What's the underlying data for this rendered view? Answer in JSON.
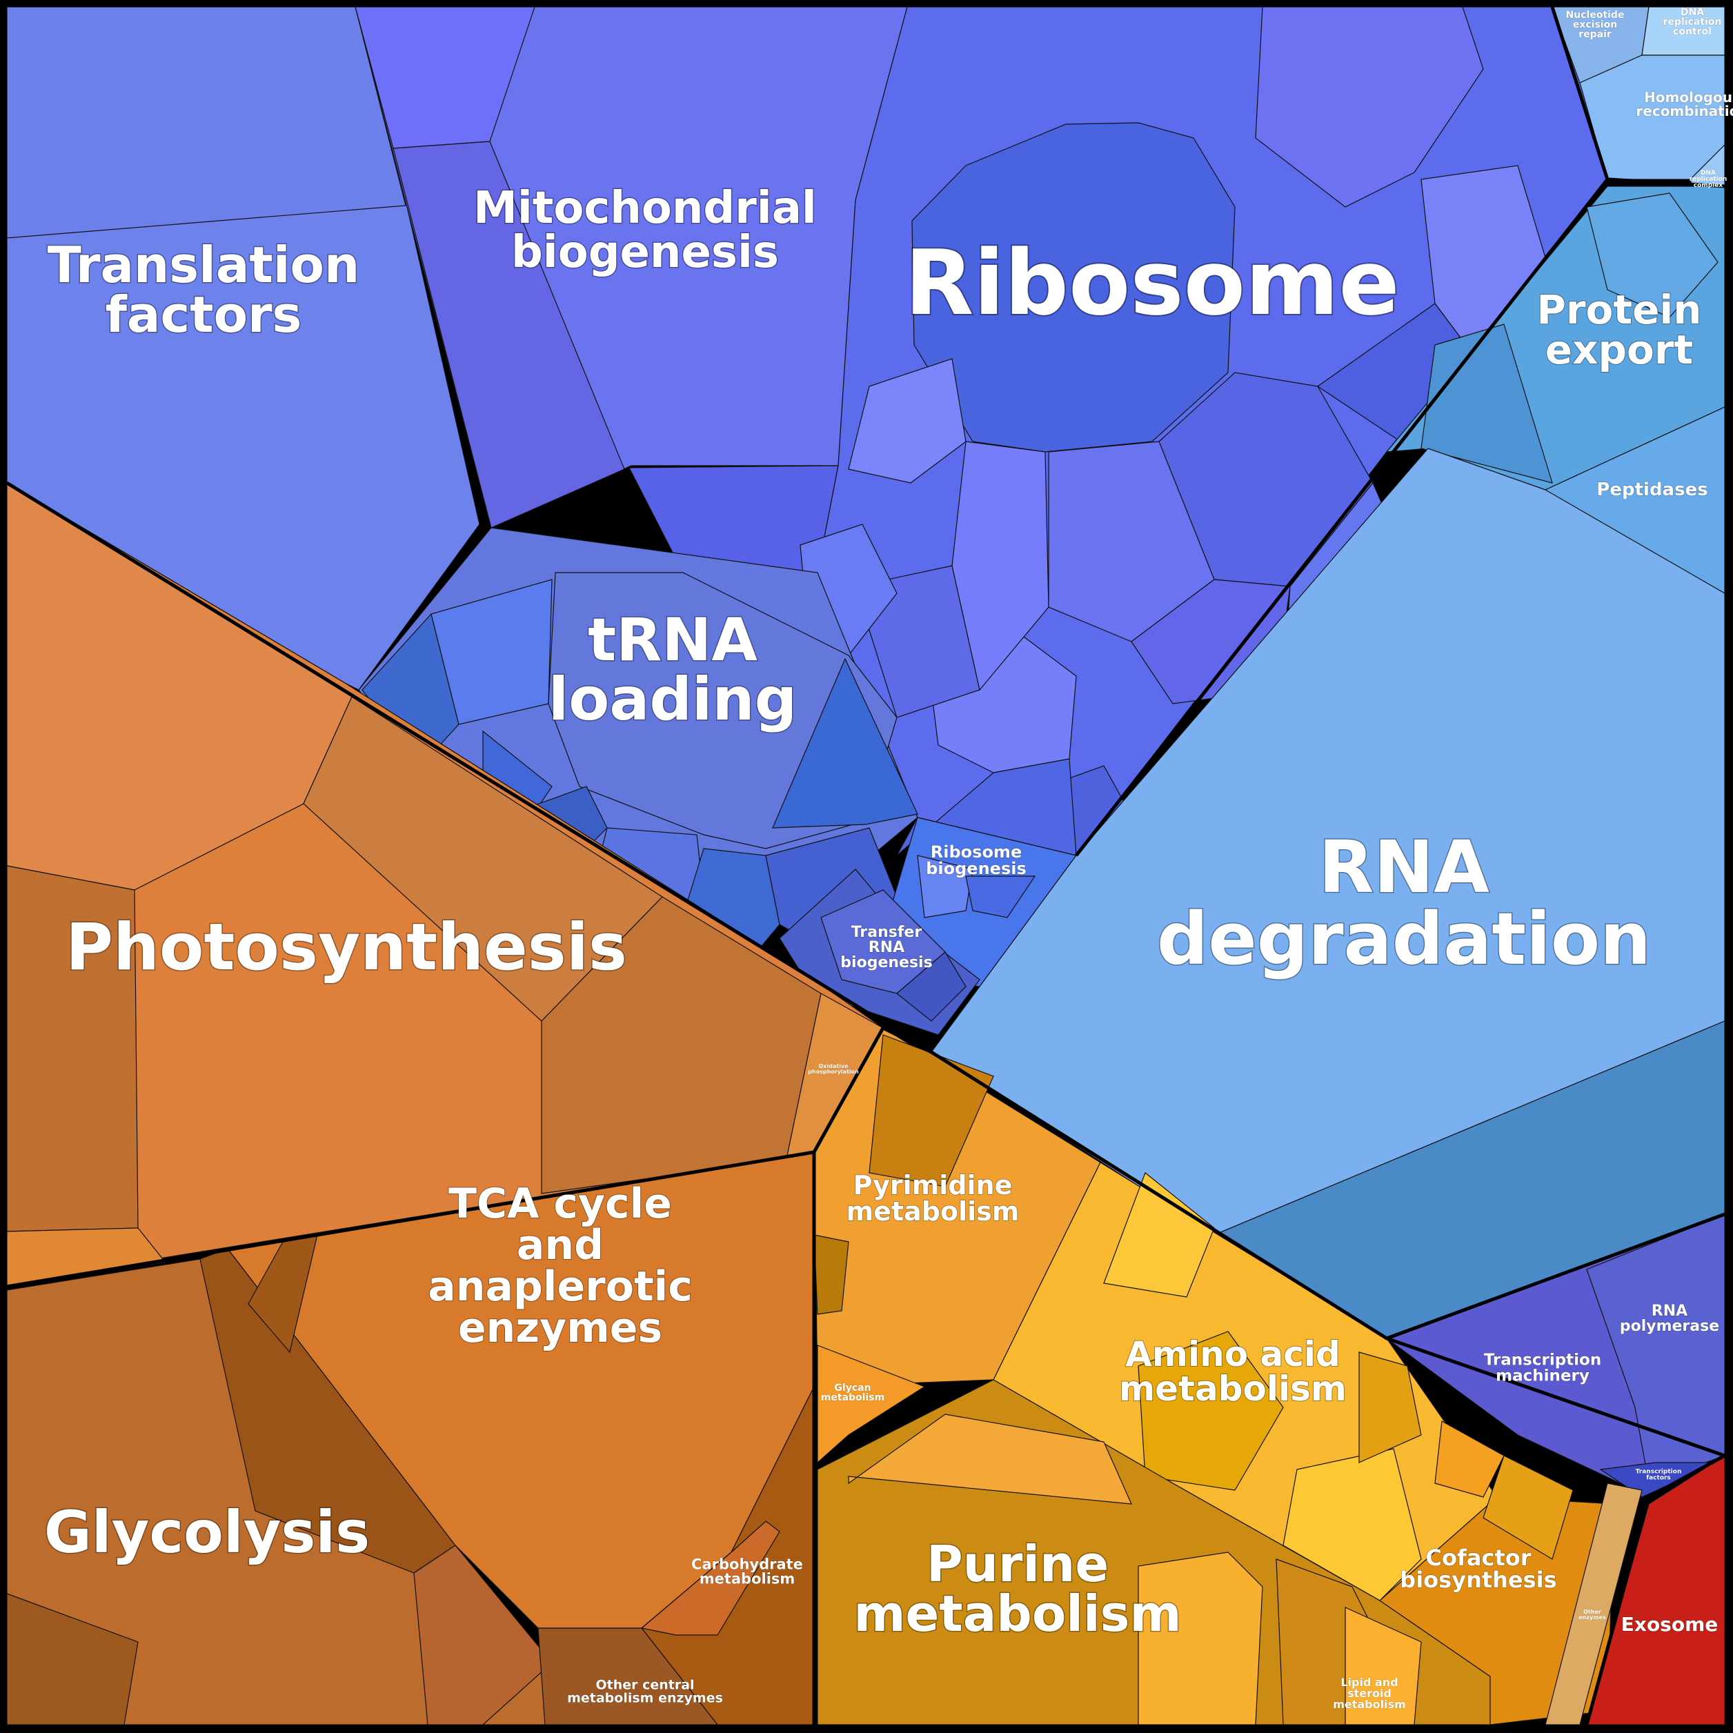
{
  "labels": {
    "translation_factors": [
      "Translation",
      "factors"
    ],
    "mitochondrial_biogenesis": [
      "Mitochondrial",
      "biogenesis"
    ],
    "ribosome": [
      "Ribosome"
    ],
    "trna_loading": [
      "tRNA",
      "loading"
    ],
    "ribosome_biogenesis": [
      "Ribosome",
      "biogenesis"
    ],
    "transfer_rna_biogenesis": [
      "Transfer",
      "RNA",
      "biogenesis"
    ],
    "nucleotide_excision_repair": [
      "Nucleotide",
      "excision",
      "repair"
    ],
    "dna_replication_control": [
      "DNA",
      "replication",
      "control"
    ],
    "homologous_recombination": [
      "Homologous",
      "recombination"
    ],
    "dna_replication_complex": [
      "DNA",
      "replication",
      "complex"
    ],
    "protein_export": [
      "Protein",
      "export"
    ],
    "peptidases": [
      "Peptidases"
    ],
    "rna_degradation": [
      "RNA",
      "degradation"
    ],
    "photosynthesis": [
      "Photosynthesis"
    ],
    "oxidative_phosphorylation": [
      "Oxidative",
      "phosphorylation"
    ],
    "tca_cycle": [
      "TCA cycle",
      "and",
      "anaplerotic",
      "enzymes"
    ],
    "glycolysis": [
      "Glycolysis"
    ],
    "carbohydrate_metabolism": [
      "Carbohydrate",
      "metabolism"
    ],
    "other_central_metabolism": [
      "Other central",
      "metabolism enzymes"
    ],
    "pyrimidine_metabolism": [
      "Pyrimidine",
      "metabolism"
    ],
    "glycan_metabolism": [
      "Glycan",
      "metabolism"
    ],
    "amino_acid_metabolism": [
      "Amino acid",
      "metabolism"
    ],
    "purine_metabolism": [
      "Purine",
      "metabolism"
    ],
    "cofactor_biosynthesis": [
      "Cofactor",
      "biosynthesis"
    ],
    "lipid_steroid_metabolism": [
      "Lipid and",
      "steroid",
      "metabolism"
    ],
    "other_enzymes": [
      "Other",
      "enzymes"
    ],
    "transcription_machinery": [
      "Transcription",
      "machinery"
    ],
    "rna_polymerase": [
      "RNA",
      "polymerase"
    ],
    "transcription_factors": [
      "Transcription",
      "factors"
    ],
    "exosome": [
      "Exosome"
    ]
  },
  "colors": {
    "translation_blue": "#6b7fe8",
    "ribosome_blue": "#4a64e0",
    "mito_blue": "#6a72f0",
    "rna_degradation": "#7aaff0",
    "rna_degradation_dark": "#4a8ac6",
    "protein_export": "#5aa4e0",
    "transcription": "#5a5ad0",
    "photosynthesis": "#dc803c",
    "glycolysis": "#b8662c",
    "tca": "#d87a2c",
    "pyrimidine": "#f0a030",
    "amino_acid": "#f8b830",
    "purine": "#cc8c14",
    "cofactor": "#e08c10",
    "exosome": "#c82018",
    "other_enzymes": "#dcaa62"
  }
}
